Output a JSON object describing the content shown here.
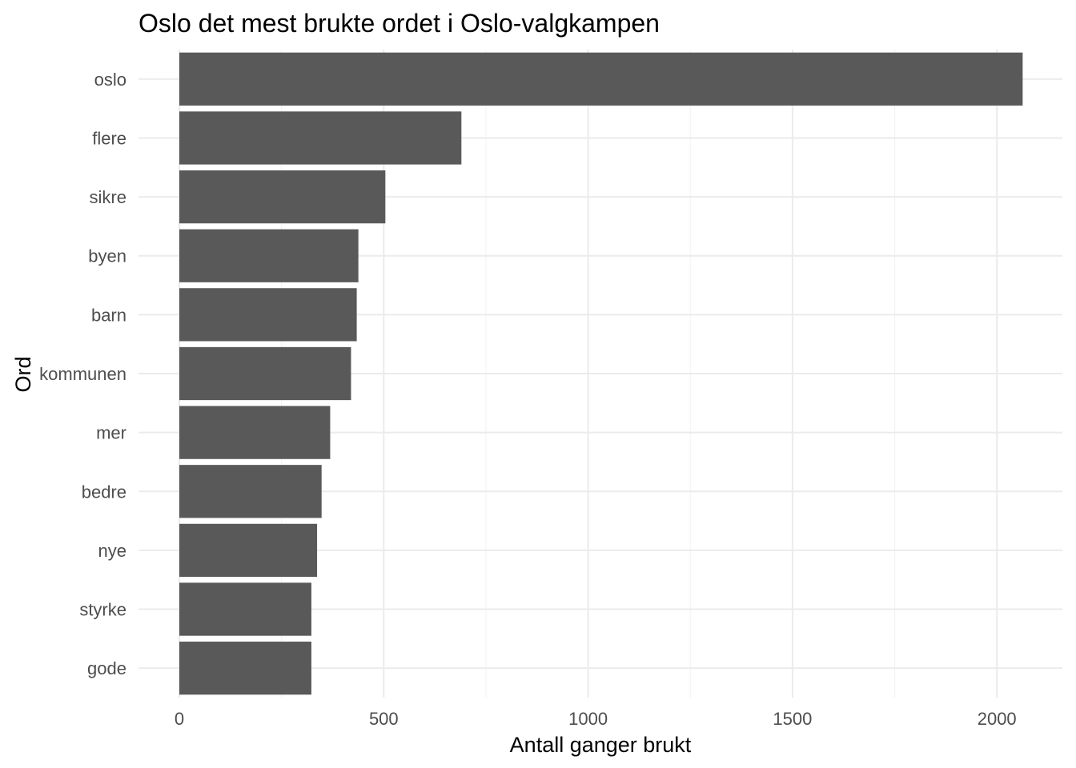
{
  "chart_data": {
    "type": "bar",
    "orientation": "horizontal",
    "title": "Oslo det mest brukte ordet i Oslo-valgkampen",
    "xlabel": "Antall ganger brukt",
    "ylabel": "Ord",
    "categories": [
      "oslo",
      "flere",
      "sikre",
      "byen",
      "barn",
      "kommunen",
      "mer",
      "bedre",
      "nye",
      "styrke",
      "gode"
    ],
    "values": [
      2063,
      690,
      504,
      438,
      434,
      420,
      369,
      348,
      337,
      323,
      323
    ],
    "x_ticks": [
      0,
      500,
      1000,
      1500,
      2000
    ],
    "xlim": [
      -100,
      2150
    ],
    "grid": true,
    "bar_color": "#595959"
  }
}
